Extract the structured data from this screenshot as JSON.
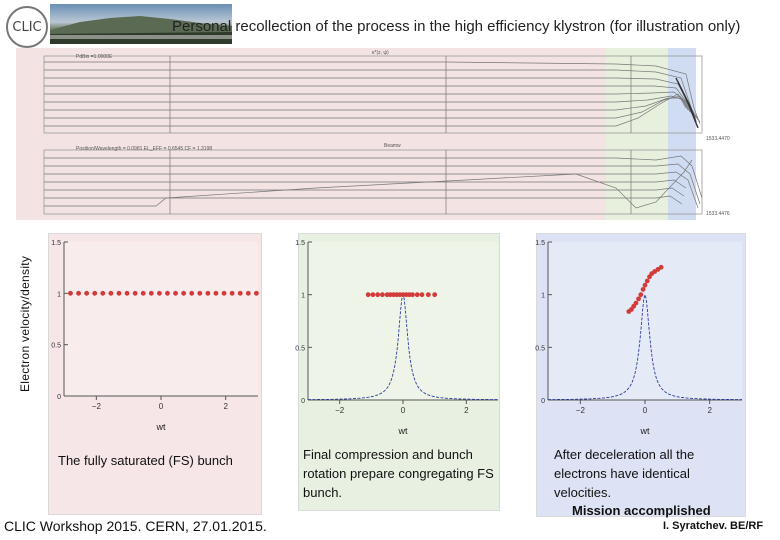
{
  "header": {
    "logo_text": "CLIC",
    "title": "Personal recollection of the process in the high efficiency klystron (for illustration only)"
  },
  "top_plots": {
    "upper": {
      "header_left": "PdBin =1.0000E",
      "header_center": "κ*(z, ψ)",
      "right_value": "1533.4470"
    },
    "lower": {
      "header_left": "Position/Wavelength = 0.0981    EL_EFF = 0.6545    CF = 1.3198",
      "header_center": "Beamw",
      "right_value": "1533.4476"
    }
  },
  "y_axis_label": "Electron velocity/density",
  "chart_data": [
    {
      "type": "scatter",
      "title": "",
      "xlabel": "wt",
      "ylabel": "",
      "xlim": [
        -3.0,
        3.0
      ],
      "ylim": [
        0,
        1.5
      ],
      "x_ticks": [
        "-2",
        "0",
        "2"
      ],
      "y_ticks": [
        "0",
        "0.5",
        "1",
        "1.5"
      ],
      "background": "#f6e6e7",
      "points": [
        [
          -2.8,
          1
        ],
        [
          -2.55,
          1
        ],
        [
          -2.3,
          1
        ],
        [
          -2.05,
          1
        ],
        [
          -1.8,
          1
        ],
        [
          -1.55,
          1
        ],
        [
          -1.3,
          1
        ],
        [
          -1.05,
          1
        ],
        [
          -0.8,
          1
        ],
        [
          -0.55,
          1
        ],
        [
          -0.3,
          1
        ],
        [
          -0.05,
          1
        ],
        [
          0.2,
          1
        ],
        [
          0.45,
          1
        ],
        [
          0.7,
          1
        ],
        [
          0.95,
          1
        ],
        [
          1.2,
          1
        ],
        [
          1.45,
          1
        ],
        [
          1.7,
          1
        ],
        [
          1.95,
          1
        ],
        [
          2.2,
          1
        ],
        [
          2.45,
          1
        ],
        [
          2.7,
          1
        ],
        [
          2.95,
          1
        ]
      ],
      "density_curve": false
    },
    {
      "type": "scatter",
      "title": "",
      "xlabel": "wt",
      "ylabel": "",
      "xlim": [
        -3.0,
        3.0
      ],
      "ylim": [
        0,
        1.5
      ],
      "x_ticks": [
        "-2",
        "0",
        "2"
      ],
      "y_ticks": [
        "0",
        "0.5",
        "1",
        "1.5"
      ],
      "background": "#e8f1e1",
      "points": [
        [
          -1.1,
          1
        ],
        [
          -0.95,
          1
        ],
        [
          -0.8,
          1
        ],
        [
          -0.65,
          1
        ],
        [
          -0.5,
          1
        ],
        [
          -0.4,
          1
        ],
        [
          -0.3,
          1
        ],
        [
          -0.2,
          1
        ],
        [
          -0.1,
          1
        ],
        [
          0.0,
          1
        ],
        [
          0.1,
          1
        ],
        [
          0.2,
          1
        ],
        [
          0.3,
          1
        ],
        [
          0.45,
          1
        ],
        [
          0.6,
          1
        ],
        [
          0.8,
          1
        ],
        [
          1.0,
          1
        ]
      ],
      "density_curve": true
    },
    {
      "type": "scatter",
      "title": "",
      "xlabel": "wt",
      "ylabel": "",
      "xlim": [
        -3.0,
        3.0
      ],
      "ylim": [
        0,
        1.5
      ],
      "x_ticks": [
        "-2",
        "0",
        "2"
      ],
      "y_ticks": [
        "0",
        "0.5",
        "1",
        "1.5"
      ],
      "background": "#dde3f4",
      "points": [
        [
          -0.5,
          0.84
        ],
        [
          -0.42,
          0.86
        ],
        [
          -0.35,
          0.89
        ],
        [
          -0.28,
          0.92
        ],
        [
          -0.2,
          0.96
        ],
        [
          -0.13,
          1.0
        ],
        [
          -0.06,
          1.05
        ],
        [
          0.0,
          1.09
        ],
        [
          0.07,
          1.13
        ],
        [
          0.14,
          1.17
        ],
        [
          0.21,
          1.2
        ],
        [
          0.3,
          1.22
        ],
        [
          0.4,
          1.24
        ],
        [
          0.5,
          1.26
        ]
      ],
      "density_curve": true
    }
  ],
  "captions": [
    "The fully saturated (FS) bunch",
    "Final compression and bunch rotation prepare congregating FS bunch.",
    "After deceleration all the electrons have identical velocities."
  ],
  "mission": "Mission accomplished",
  "footer": "CLIC Workshop 2015. CERN, 27.01.2015.",
  "author": "I. Syratchev. BE/RF",
  "colors": {
    "point": "#d33a3a",
    "curve": "#2a3d9c"
  }
}
